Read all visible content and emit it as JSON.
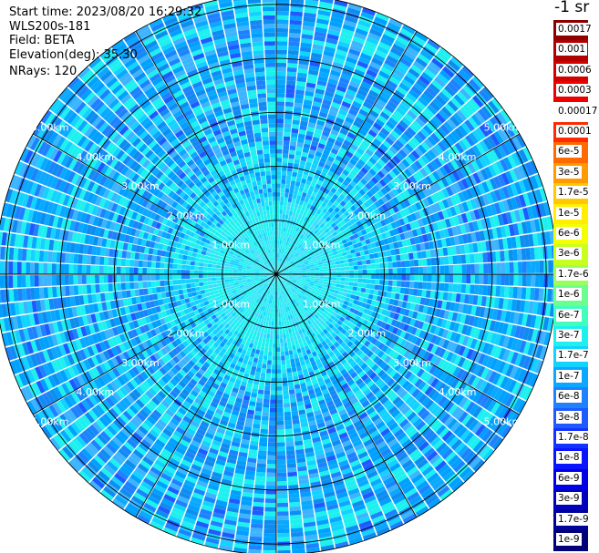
{
  "header": {
    "start_time": "Start time: 2023/08/20 16:29:32",
    "instrument": "WLS200s-181",
    "field": "Field: BETA",
    "elevation": "Elevation(deg): 35.30",
    "nrays": "NRays: 120"
  },
  "units_label": "-1 sr",
  "chart_data": {
    "type": "heatmap",
    "projection": "polar-ppi",
    "field": "BETA",
    "elevation_deg": 35.3,
    "n_rays": 120,
    "range_rings_km": [
      1,
      2,
      3,
      4,
      5
    ],
    "range_labels": [
      "1.00km",
      "2.00km",
      "3.00km",
      "4.00km",
      "5.00km"
    ],
    "max_range_km": 5.2,
    "spokes_deg_step": 30,
    "colorbar": {
      "labels": [
        "0.0017",
        "0.001",
        "0.0006",
        "0.0003",
        "0.00017",
        "0.0001",
        "6e-5",
        "3e-5",
        "1.7e-5",
        "1e-5",
        "6e-6",
        "3e-6",
        "1.7e-6",
        "1e-6",
        "6e-7",
        "3e-7",
        "1.7e-7",
        "1e-7",
        "6e-8",
        "3e-8",
        "1.7e-8",
        "1e-8",
        "6e-9",
        "3e-9",
        "1.7e-9",
        "1e-9"
      ],
      "colors": [
        "#8b0000",
        "#b00000",
        "#d40000",
        "#ee0000",
        "#ffffff",
        "#ff2a00",
        "#ff6a00",
        "#ff9a00",
        "#ffc800",
        "#ffee00",
        "#f4ff00",
        "#c8ff1e",
        "#9aff5a",
        "#6aff8e",
        "#40ffbe",
        "#1ef0f0",
        "#14d2ff",
        "#0aa8ff",
        "#1e82ff",
        "#1e5aff",
        "#1432ff",
        "#0a14ff",
        "#0000e6",
        "#0000be",
        "#00009a",
        "#000078"
      ]
    }
  }
}
